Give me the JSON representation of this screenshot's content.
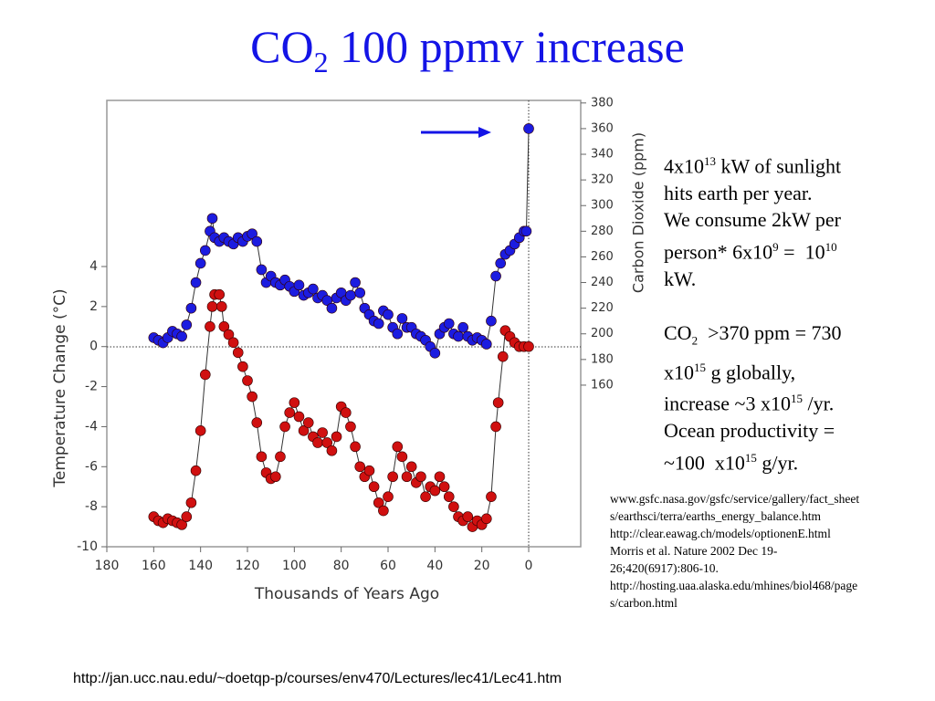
{
  "title": {
    "text": "CO",
    "sub": "2",
    "rest": " 100 ppmv increase"
  },
  "notes": [
    [
      "4x10",
      {
        "sup": "13"
      },
      " kW of sunlight"
    ],
    [
      "hits earth per year."
    ],
    [
      "We consume 2kW per"
    ],
    [
      "person* 6x10",
      {
        "sup": "9"
      },
      " =  10",
      {
        "sup": "10"
      }
    ],
    [
      "kW."
    ],
    [],
    [
      "CO",
      {
        "sub": "2"
      },
      "  >370 ppm = 730"
    ],
    [
      "x10",
      {
        "sup": "15"
      },
      " g globally,"
    ],
    [
      "increase ~3 x10",
      {
        "sup": "15"
      },
      " /yr."
    ],
    [
      "Ocean productivity ="
    ],
    [
      "~100  x10",
      {
        "sup": "15"
      },
      " g/yr."
    ]
  ],
  "references": [
    "www.gsfc.nasa.gov/gsfc/service/gallery/fact_sheet",
    "s/earthsci/terra/earths_energy_balance.htm",
    "http://clear.eawag.ch/models/optionenE.html",
    "Morris et al. Nature 2002 Dec 19-",
    "26;420(6917):806-10.",
    "http://hosting.uaa.alaska.edu/mhines/biol468/page",
    "s/carbon.html"
  ],
  "footer": "http://jan.ucc.nau.edu/~doetqp-p/courses/env470/Lectures/lec41/Lec41.htm",
  "chart_data": {
    "type": "scatter",
    "xlabel": "Thousands of Years Ago",
    "ylabel": "Temperature Change (°C)",
    "y2label": "Carbon Dioxide (ppm)",
    "xlim": [
      180,
      -22.2
    ],
    "xticks": [
      180,
      160,
      140,
      120,
      100,
      80,
      60,
      40,
      20,
      0
    ],
    "ylim": [
      -10,
      12.3
    ],
    "yticks": [
      -10,
      -8,
      -6,
      -4,
      -2,
      0,
      2,
      4
    ],
    "y2lim": [
      34,
      382
    ],
    "y2ticks": [
      160,
      180,
      200,
      220,
      240,
      260,
      280,
      300,
      320,
      340,
      360,
      380
    ],
    "series": [
      {
        "color": "#d01010",
        "axis": "y",
        "x": [
          160,
          158,
          156,
          154,
          152,
          150,
          148,
          146,
          144,
          142,
          140,
          138,
          136,
          135,
          134,
          132,
          131,
          130,
          128,
          126,
          124,
          122,
          120,
          118,
          116,
          114,
          112,
          110,
          108,
          106,
          104,
          102,
          100,
          98,
          96,
          94,
          92,
          90,
          88,
          86,
          84,
          82,
          80,
          78,
          76,
          74,
          72,
          70,
          68,
          66,
          64,
          62,
          60,
          58,
          56,
          54,
          52,
          50,
          48,
          46,
          44,
          42,
          40,
          38,
          36,
          34,
          32,
          30,
          28,
          26,
          24,
          22,
          20,
          18,
          16,
          14,
          13,
          11,
          10,
          8,
          6,
          4,
          2,
          0
        ],
        "values": [
          -8.5,
          -8.7,
          -8.8,
          -8.6,
          -8.7,
          -8.8,
          -8.9,
          -8.5,
          -7.8,
          -6.2,
          -4.2,
          -1.4,
          1.0,
          2.0,
          2.6,
          2.6,
          2.0,
          1.0,
          0.6,
          0.2,
          -0.3,
          -1.0,
          -1.7,
          -2.5,
          -3.8,
          -5.5,
          -6.3,
          -6.6,
          -6.5,
          -5.5,
          -4.0,
          -3.3,
          -2.8,
          -3.5,
          -4.2,
          -3.8,
          -4.5,
          -4.8,
          -4.3,
          -4.8,
          -5.2,
          -4.5,
          -3.0,
          -3.3,
          -4.0,
          -5.0,
          -6.0,
          -6.5,
          -6.2,
          -7.0,
          -7.8,
          -8.2,
          -7.5,
          -6.5,
          -5.0,
          -5.5,
          -6.5,
          -6.0,
          -6.8,
          -6.5,
          -7.5,
          -7.0,
          -7.2,
          -6.5,
          -7.0,
          -7.5,
          -8.0,
          -8.5,
          -8.7,
          -8.5,
          -9.0,
          -8.7,
          -8.9,
          -8.6,
          -7.5,
          -4.0,
          -2.8,
          -0.5,
          0.8,
          0.5,
          0.2,
          0.0,
          0.0,
          0.0
        ]
      },
      {
        "color": "#1c1ce0",
        "axis": "y2",
        "x": [
          160,
          158,
          156,
          154,
          152,
          150,
          148,
          146,
          144,
          142,
          140,
          138,
          136,
          135,
          134,
          132,
          130,
          128,
          126,
          124,
          122,
          120,
          118,
          116,
          114,
          112,
          110,
          108,
          106,
          104,
          102,
          100,
          98,
          96,
          94,
          92,
          90,
          88,
          86,
          84,
          82,
          80,
          78,
          76,
          74,
          72,
          70,
          68,
          66,
          64,
          62,
          60,
          58,
          56,
          54,
          52,
          50,
          48,
          46,
          44,
          42,
          40,
          38,
          36,
          34,
          32,
          30,
          28,
          26,
          24,
          22,
          20,
          18,
          16,
          14,
          12,
          10,
          8,
          6,
          4,
          2,
          1,
          0
        ],
        "values": [
          197,
          195,
          193,
          197,
          202,
          200,
          198,
          207,
          220,
          240,
          255,
          265,
          280,
          290,
          275,
          272,
          275,
          272,
          270,
          275,
          272,
          276,
          278,
          272,
          250,
          240,
          245,
          240,
          238,
          242,
          237,
          233,
          238,
          230,
          232,
          235,
          228,
          230,
          226,
          220,
          228,
          232,
          226,
          230,
          240,
          232,
          220,
          215,
          210,
          208,
          218,
          215,
          205,
          200,
          212,
          205,
          205,
          200,
          198,
          195,
          190,
          185,
          200,
          205,
          208,
          200,
          198,
          205,
          198,
          195,
          197,
          195,
          192,
          210,
          245,
          255,
          262,
          265,
          270,
          275,
          280,
          280,
          360
        ]
      }
    ]
  }
}
